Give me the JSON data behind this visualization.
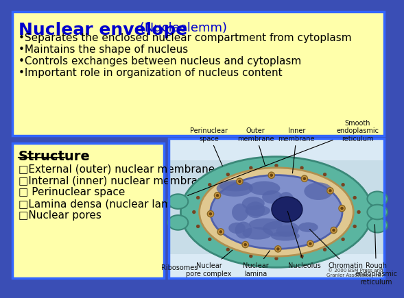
{
  "title": "Nuclear envelope",
  "title_suffix": " (Nucleolemm)",
  "bullet_points": [
    "•Separates the enclosed nuclear compartment from cytoplasm",
    "•Maintains the shape of nucleus",
    "•Controls exchanges between nucleus and cytoplasm",
    "•Important role in organization of nucleus content"
  ],
  "structure_title": "Structure",
  "structure_bullets": [
    "□External (outer) nuclear membrane",
    "□Internal (inner) nuclear membrane",
    "□ Perinuclear space",
    "□Lamina densa (nuclear lamina)",
    "□Nuclear pores"
  ],
  "background_color": "#3a4eb5",
  "top_box_color": "#ffffaa",
  "bottom_left_box_color": "#ffffaa",
  "top_box_border": "#3366ff",
  "title_color": "#0000cc",
  "text_color": "#000000",
  "copyright": "© 2000 BSM Press and\nGranier Associates, Inc."
}
